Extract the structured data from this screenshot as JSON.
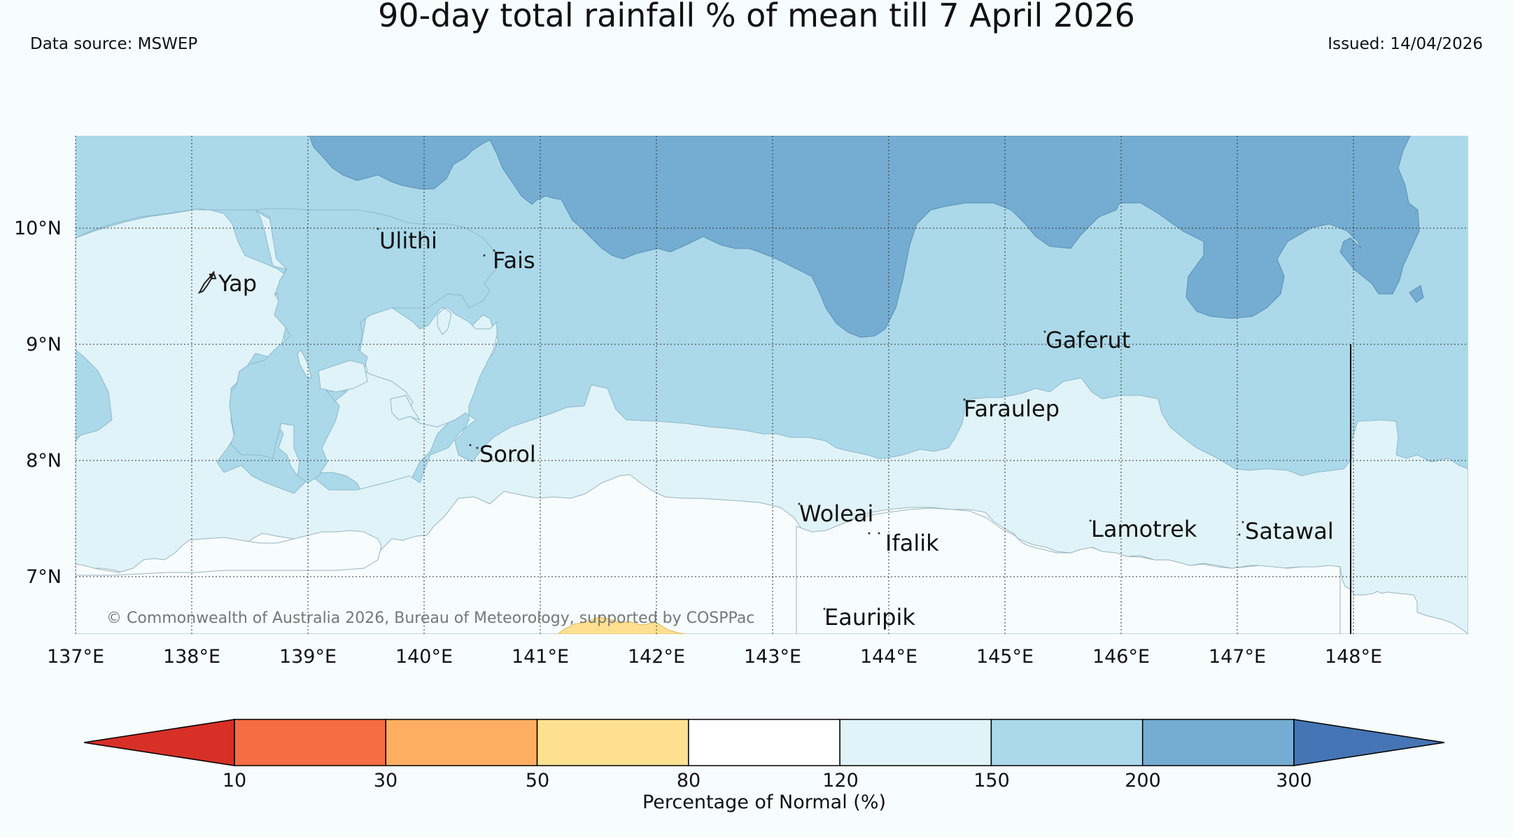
{
  "header": {
    "title": "90-day total rainfall % of mean till 7 April 2026",
    "data_source": "Data source: MSWEP",
    "issued": "Issued: 14/04/2026"
  },
  "map": {
    "lon_range": [
      137,
      149
    ],
    "lat_range": [
      6.5,
      10.8
    ],
    "x_ticks": [
      "137°E",
      "138°E",
      "139°E",
      "140°E",
      "141°E",
      "142°E",
      "143°E",
      "144°E",
      "145°E",
      "146°E",
      "147°E",
      "148°E"
    ],
    "y_ticks": [
      "10°N",
      "9°N",
      "8°N",
      "7°N"
    ],
    "places": [
      {
        "name": "Yap",
        "lon": 138.2,
        "lat": 9.5
      },
      {
        "name": "Ulithi",
        "lon": 139.7,
        "lat": 9.85
      },
      {
        "name": "Fais",
        "lon": 140.5,
        "lat": 9.75
      },
      {
        "name": "Sorol",
        "lon": 140.4,
        "lat": 8.1
      },
      {
        "name": "Gaferut",
        "lon": 145.4,
        "lat": 9.0
      },
      {
        "name": "Faraulep",
        "lon": 144.7,
        "lat": 8.4
      },
      {
        "name": "Woleai",
        "lon": 143.2,
        "lat": 7.55
      },
      {
        "name": "Ifalik",
        "lon": 143.9,
        "lat": 7.3
      },
      {
        "name": "Lamotrek",
        "lon": 145.8,
        "lat": 7.4
      },
      {
        "name": "Satawal",
        "lon": 147.1,
        "lat": 7.35
      },
      {
        "name": "Eauripik",
        "lon": 143.5,
        "lat": 6.65
      }
    ],
    "copyright": "© Commonwealth of Australia 2026, Bureau of Meteorology, supported by COSPPac"
  },
  "colorbar": {
    "label": "Percentage of Normal (%)",
    "ticks": [
      "10",
      "30",
      "50",
      "80",
      "120",
      "150",
      "200",
      "300"
    ],
    "colors": [
      "#d73027",
      "#f46d43",
      "#fdae61",
      "#fee090",
      "#ffffff",
      "#e0f3f8",
      "#abd9e9",
      "#74add1",
      "#4575b4"
    ],
    "classes": [
      {
        "range": "<10",
        "color": "#d73027"
      },
      {
        "range": "10-30",
        "color": "#f46d43"
      },
      {
        "range": "30-50",
        "color": "#fdae61"
      },
      {
        "range": "50-80",
        "color": "#fee090"
      },
      {
        "range": "80-120",
        "color": "#ffffff"
      },
      {
        "range": "120-150",
        "color": "#e0f3f8"
      },
      {
        "range": "150-200",
        "color": "#abd9e9"
      },
      {
        "range": "200-300",
        "color": "#74add1"
      },
      {
        "range": ">300",
        "color": "#4575b4"
      }
    ]
  }
}
